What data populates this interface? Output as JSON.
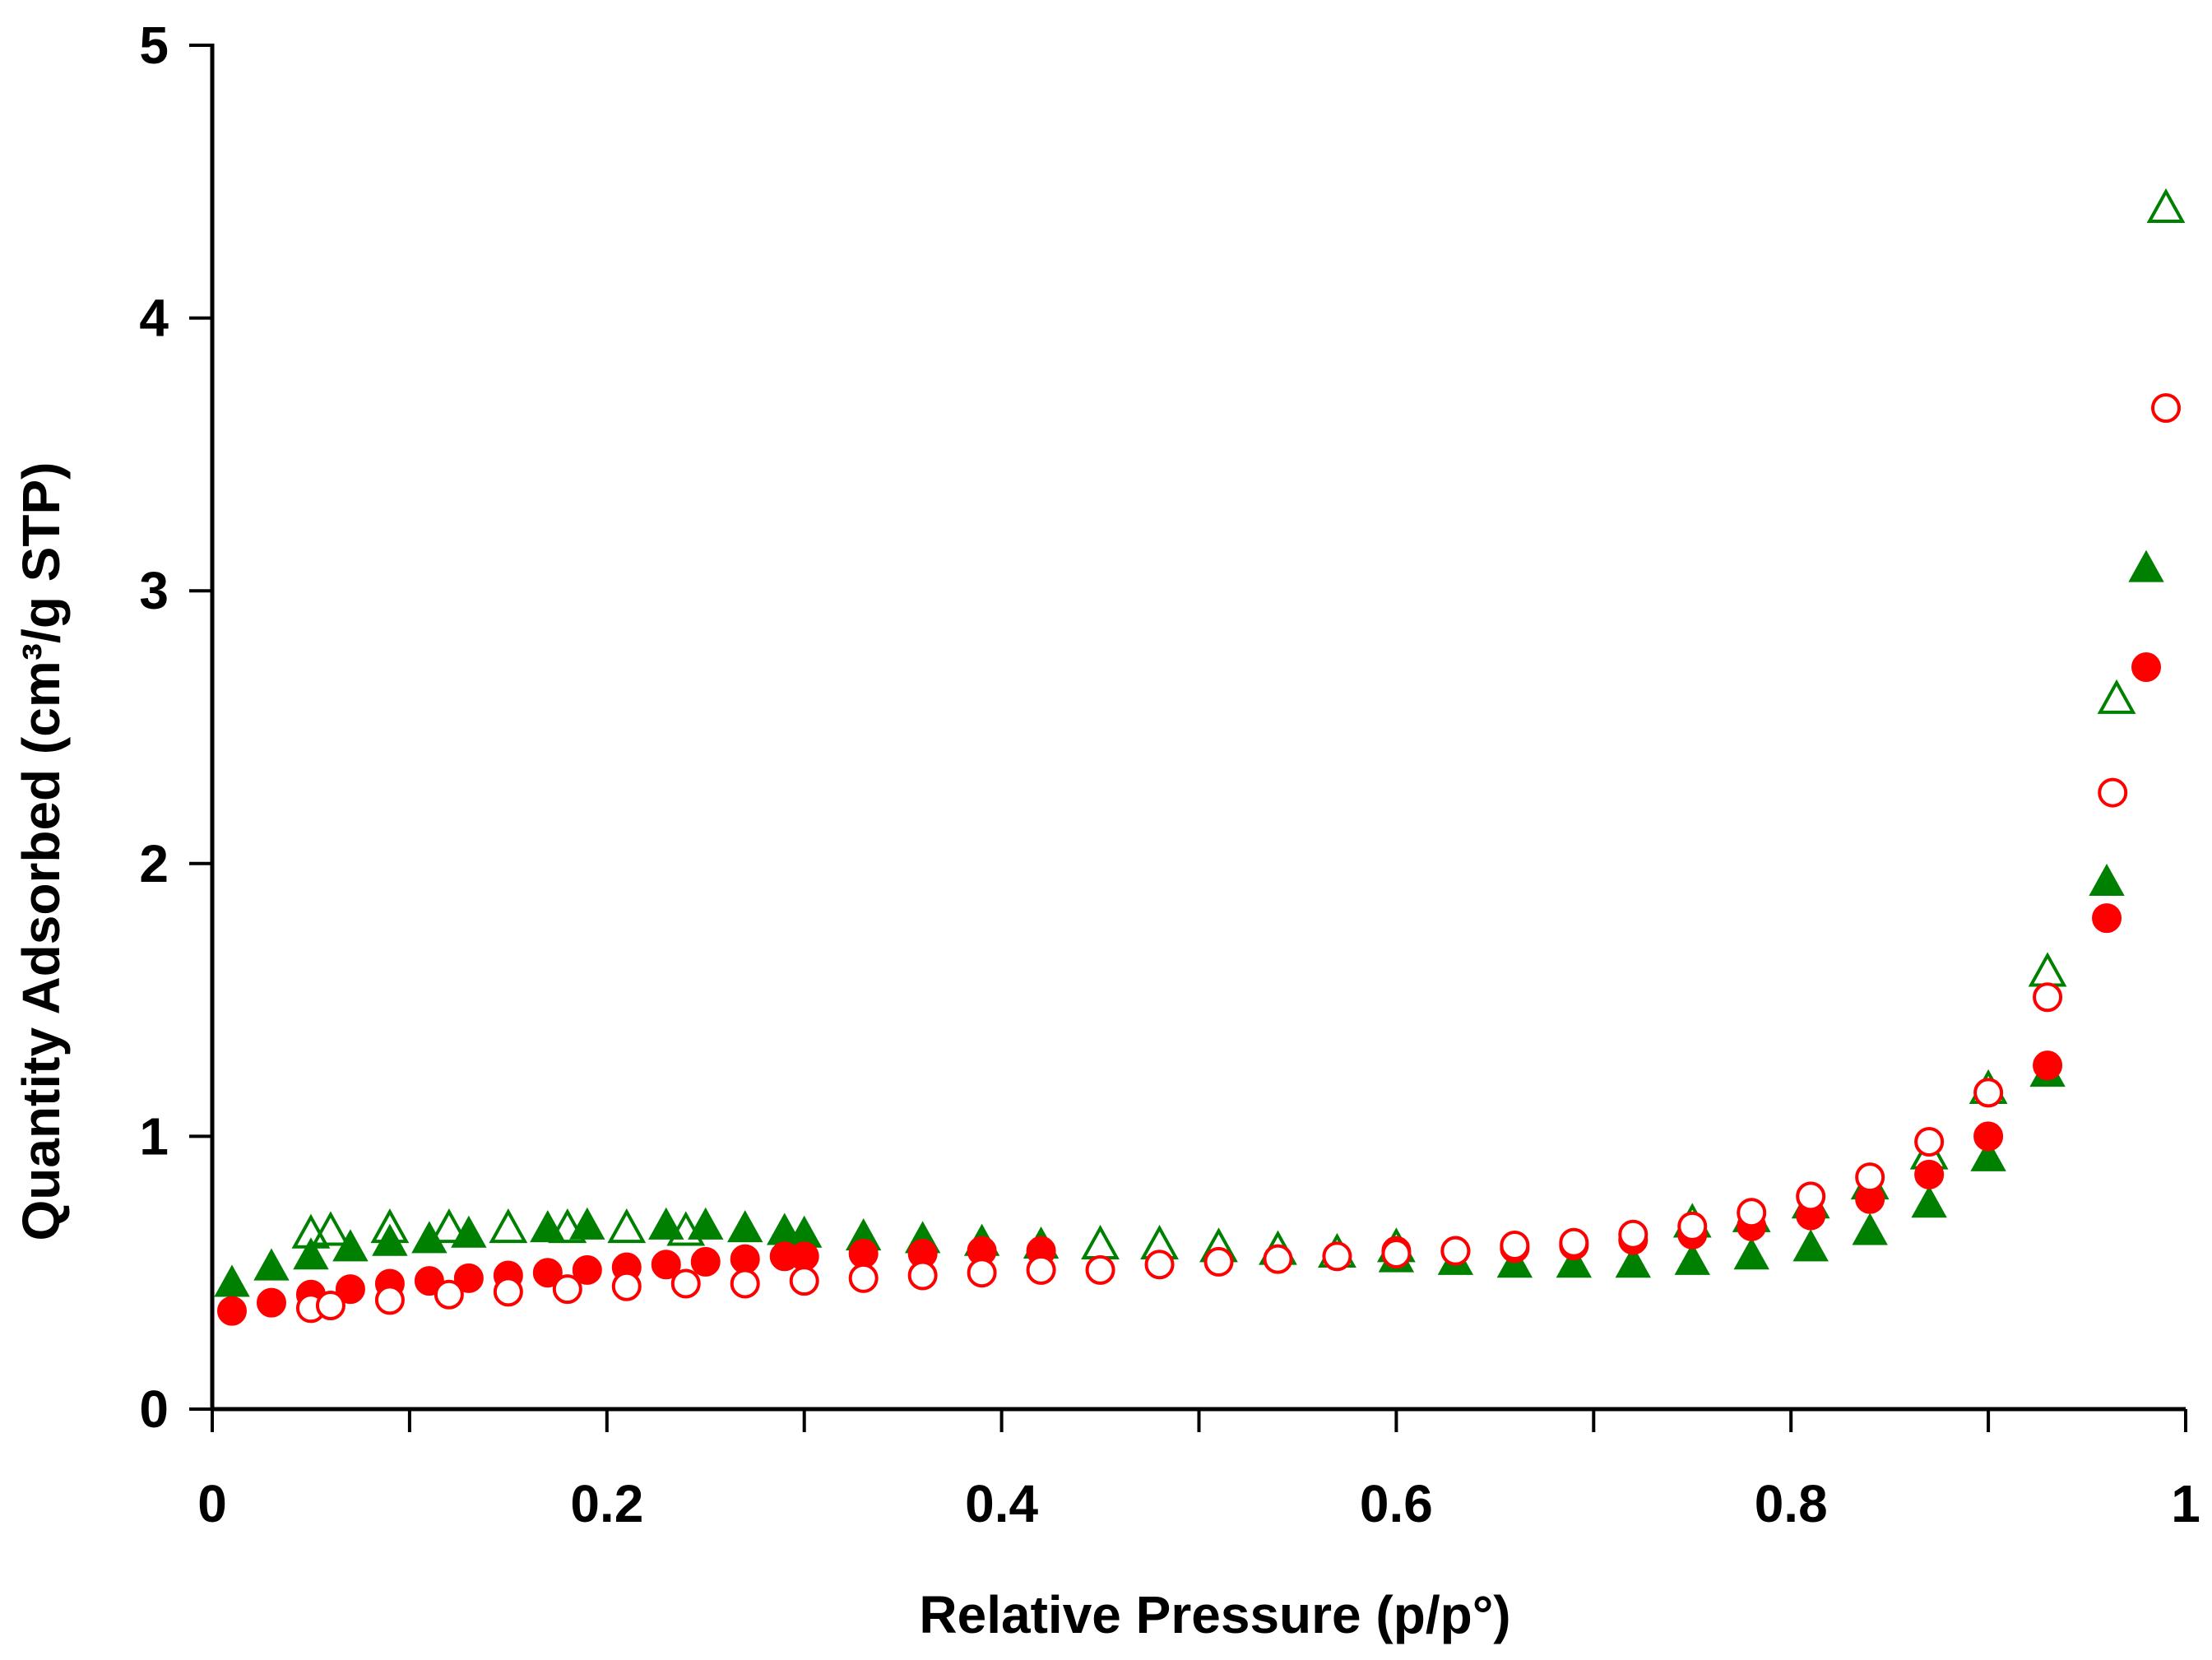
{
  "chart_data": {
    "type": "scatter",
    "title": "",
    "xlabel": "Relative Pressure (p/p°)",
    "ylabel": "Quantity Adsorbed (cm³/g STP)",
    "xlim": [
      0,
      1
    ],
    "ylim": [
      0,
      5
    ],
    "xticks": [
      0,
      0.1,
      0.2,
      0.3,
      0.4,
      0.5,
      0.6,
      0.7,
      0.8,
      0.9,
      1
    ],
    "xtick_labels": [
      "0",
      "",
      "0.2",
      "",
      "0.4",
      "",
      "0.6",
      "",
      "0.8",
      "",
      "1"
    ],
    "yticks": [
      0,
      1,
      2,
      3,
      4,
      5
    ],
    "ytick_labels": [
      "0",
      "1",
      "2",
      "3",
      "4",
      "5"
    ],
    "grid": false,
    "legend": "none",
    "colors": {
      "green": "#008000",
      "red": "#ff0000",
      "axis": "#000000"
    },
    "series": [
      {
        "name": "green filled triangles",
        "marker": "triangle-filled",
        "color": "#008000",
        "points": [
          [
            0.01,
            0.46
          ],
          [
            0.03,
            0.52
          ],
          [
            0.05,
            0.56
          ],
          [
            0.07,
            0.59
          ],
          [
            0.09,
            0.61
          ],
          [
            0.11,
            0.62
          ],
          [
            0.13,
            0.64
          ],
          [
            0.17,
            0.66
          ],
          [
            0.19,
            0.67
          ],
          [
            0.23,
            0.67
          ],
          [
            0.25,
            0.67
          ],
          [
            0.27,
            0.66
          ],
          [
            0.29,
            0.65
          ],
          [
            0.3,
            0.64
          ],
          [
            0.33,
            0.63
          ],
          [
            0.36,
            0.62
          ],
          [
            0.39,
            0.61
          ],
          [
            0.42,
            0.6
          ],
          [
            0.6,
            0.55
          ],
          [
            0.63,
            0.54
          ],
          [
            0.66,
            0.53
          ],
          [
            0.69,
            0.53
          ],
          [
            0.72,
            0.53
          ],
          [
            0.75,
            0.54
          ],
          [
            0.78,
            0.56
          ],
          [
            0.81,
            0.59
          ],
          [
            0.84,
            0.65
          ],
          [
            0.87,
            0.75
          ],
          [
            0.9,
            0.92
          ],
          [
            0.93,
            1.23
          ],
          [
            0.96,
            1.93
          ],
          [
            0.98,
            3.08
          ]
        ]
      },
      {
        "name": "green open triangles",
        "marker": "triangle-open",
        "color": "#008000",
        "points": [
          [
            0.05,
            0.64
          ],
          [
            0.06,
            0.65
          ],
          [
            0.09,
            0.66
          ],
          [
            0.12,
            0.66
          ],
          [
            0.15,
            0.66
          ],
          [
            0.18,
            0.66
          ],
          [
            0.21,
            0.66
          ],
          [
            0.24,
            0.65
          ],
          [
            0.45,
            0.6
          ],
          [
            0.48,
            0.6
          ],
          [
            0.51,
            0.59
          ],
          [
            0.54,
            0.58
          ],
          [
            0.57,
            0.57
          ],
          [
            0.6,
            0.59
          ],
          [
            0.75,
            0.68
          ],
          [
            0.78,
            0.7
          ],
          [
            0.81,
            0.75
          ],
          [
            0.84,
            0.82
          ],
          [
            0.87,
            0.93
          ],
          [
            0.9,
            1.17
          ],
          [
            0.93,
            1.6
          ],
          [
            0.965,
            2.6
          ],
          [
            0.99,
            4.4
          ]
        ]
      },
      {
        "name": "red filled circles",
        "marker": "circle-filled",
        "color": "#ff0000",
        "points": [
          [
            0.01,
            0.36
          ],
          [
            0.03,
            0.39
          ],
          [
            0.05,
            0.42
          ],
          [
            0.07,
            0.44
          ],
          [
            0.09,
            0.46
          ],
          [
            0.11,
            0.47
          ],
          [
            0.13,
            0.48
          ],
          [
            0.15,
            0.49
          ],
          [
            0.17,
            0.5
          ],
          [
            0.19,
            0.51
          ],
          [
            0.21,
            0.52
          ],
          [
            0.23,
            0.53
          ],
          [
            0.25,
            0.54
          ],
          [
            0.27,
            0.55
          ],
          [
            0.29,
            0.56
          ],
          [
            0.3,
            0.56
          ],
          [
            0.33,
            0.57
          ],
          [
            0.36,
            0.57
          ],
          [
            0.39,
            0.58
          ],
          [
            0.42,
            0.58
          ],
          [
            0.6,
            0.58
          ],
          [
            0.63,
            0.58
          ],
          [
            0.66,
            0.59
          ],
          [
            0.69,
            0.6
          ],
          [
            0.72,
            0.62
          ],
          [
            0.75,
            0.64
          ],
          [
            0.78,
            0.67
          ],
          [
            0.81,
            0.71
          ],
          [
            0.84,
            0.77
          ],
          [
            0.87,
            0.86
          ],
          [
            0.9,
            1.0
          ],
          [
            0.93,
            1.26
          ],
          [
            0.96,
            1.8
          ],
          [
            0.98,
            2.72
          ]
        ]
      },
      {
        "name": "red open circles",
        "marker": "circle-open",
        "color": "#ff0000",
        "points": [
          [
            0.05,
            0.37
          ],
          [
            0.06,
            0.38
          ],
          [
            0.09,
            0.4
          ],
          [
            0.12,
            0.42
          ],
          [
            0.15,
            0.43
          ],
          [
            0.18,
            0.44
          ],
          [
            0.21,
            0.45
          ],
          [
            0.24,
            0.46
          ],
          [
            0.27,
            0.46
          ],
          [
            0.3,
            0.47
          ],
          [
            0.33,
            0.48
          ],
          [
            0.36,
            0.49
          ],
          [
            0.39,
            0.5
          ],
          [
            0.42,
            0.51
          ],
          [
            0.45,
            0.51
          ],
          [
            0.48,
            0.53
          ],
          [
            0.51,
            0.54
          ],
          [
            0.54,
            0.55
          ],
          [
            0.57,
            0.56
          ],
          [
            0.6,
            0.57
          ],
          [
            0.63,
            0.58
          ],
          [
            0.66,
            0.6
          ],
          [
            0.69,
            0.61
          ],
          [
            0.72,
            0.64
          ],
          [
            0.75,
            0.67
          ],
          [
            0.78,
            0.72
          ],
          [
            0.81,
            0.78
          ],
          [
            0.84,
            0.85
          ],
          [
            0.87,
            0.98
          ],
          [
            0.9,
            1.16
          ],
          [
            0.93,
            1.51
          ],
          [
            0.963,
            2.26
          ],
          [
            0.99,
            3.67
          ]
        ]
      }
    ]
  }
}
